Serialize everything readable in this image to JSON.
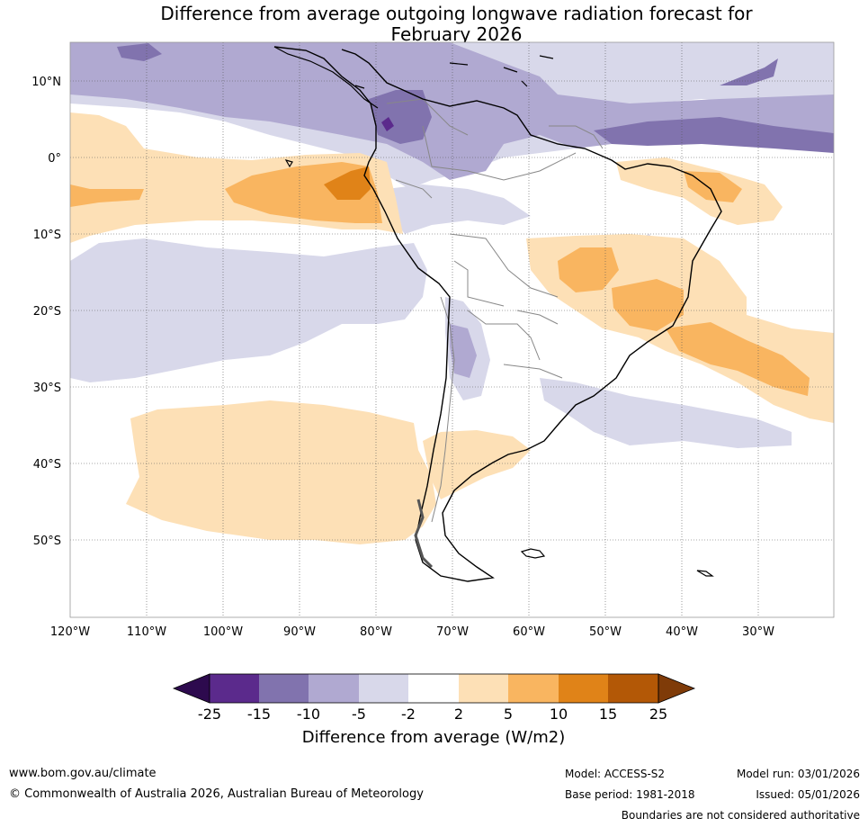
{
  "title": {
    "line1": "Difference from average outgoing longwave radiation forecast for",
    "line2": "February 2026"
  },
  "map": {
    "lat_labels": [
      "10°N",
      "0°",
      "10°S",
      "20°S",
      "30°S",
      "40°S",
      "50°S"
    ],
    "lon_labels": [
      "120°W",
      "110°W",
      "100°W",
      "90°W",
      "80°W",
      "70°W",
      "60°W",
      "50°W",
      "40°W",
      "30°W"
    ]
  },
  "legend": {
    "ticks": [
      "-25",
      "-15",
      "-10",
      "-5",
      "-2",
      "2",
      "5",
      "10",
      "15",
      "25"
    ],
    "colors": [
      "#2d0a4e",
      "#5b2a8c",
      "#8173ae",
      "#b0a9d1",
      "#d8d8ea",
      "#ffffff",
      "#fde0b6",
      "#f9b560",
      "#e08318",
      "#b35806",
      "#7f3b08"
    ],
    "title": "Difference from average (W/m2)"
  },
  "footer": {
    "website": "www.bom.gov.au/climate",
    "copyright": "© Commonwealth of Australia 2026, Australian Bureau of Meteorology",
    "model": "Model: ACCESS-S2",
    "base_period": "Base period: 1981-2018",
    "model_run": "Model run: 03/01/2026",
    "issued": "Issued: 05/01/2026",
    "disclaimer": "Boundaries are not considered authoritative"
  }
}
